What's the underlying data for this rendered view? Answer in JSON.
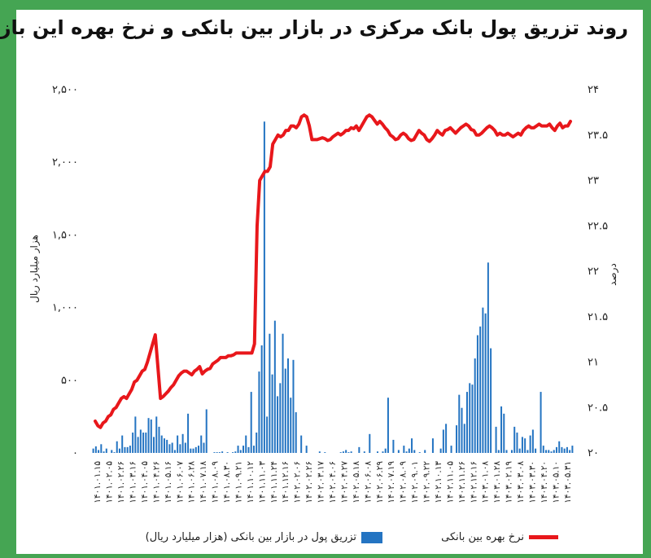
{
  "title": "روند تزریق پول بانک مرکزی در بازار بین بانکی و نرخ بهره این بازار",
  "legend": {
    "rate_label": "نرخ بهره بین بانکی",
    "injection_label": "تزریق پول در بازار بین بانکی (هزار میلیارد ریال)"
  },
  "colors": {
    "line": "#e8171b",
    "bar": "#2474c2",
    "frame": "#45a553"
  },
  "chart_data": {
    "type": "bar+line",
    "title": "روند تزریق پول بانک مرکزی در بازار بین بانکی و نرخ بهره این بازار",
    "ylabel_left": "هزار میلیارد ریال",
    "ylabel_right": "درصد",
    "y_left_lim": [
      0,
      2500
    ],
    "y_right_lim": [
      20,
      24
    ],
    "y_left_ticks": [
      "۰",
      "۵۰۰",
      "۱,۰۰۰",
      "۱,۵۰۰",
      "۲,۰۰۰",
      "۲,۵۰۰"
    ],
    "y_right_ticks": [
      "۲۰",
      "۲۰.۵",
      "۲۱",
      "۲۱.۵",
      "۲۲",
      "۲۲.۵",
      "۲۳",
      "۲۳.۵",
      "۲۴"
    ],
    "x_tick_labels": [
      "۱۴۰۱.۰۱.۱۵",
      "۱۴۰۱.۰۲.۰۵",
      "۱۴۰۱.۰۲.۲۶",
      "۱۴۰۱.۰۳.۱۶",
      "۱۴۰۱.۰۴.۰۵",
      "۱۴۰۱.۰۴.۲۶",
      "۱۴۰۱.۰۵.۱۶",
      "۱۴۰۱.۰۶.۰۷",
      "۱۴۰۱.۰۶.۲۸",
      "۱۴۰۱.۰۷.۱۸",
      "۱۴۰۱.۰۸.۰۹",
      "۱۴۰۱.۰۸.۳۰",
      "۱۴۰۱.۰۹.۲۱",
      "۱۴۰۱.۱۰.۱۲",
      "۱۴۰۱.۱۱.۰۳",
      "۱۴۰۱.۱۱.۲۴",
      "۱۴۰۱.۱۲.۱۶",
      "۱۴۰۲.۰۲.۰۶",
      "۱۴۰۲.۰۲.۲۶",
      "۱۴۰۲.۰۳.۱۷",
      "۱۴۰۲.۰۴.۰۶",
      "۱۴۰۲.۰۴.۲۷",
      "۱۴۰۲.۰۵.۱۸",
      "۱۴۰۲.۰۶.۰۸",
      "۱۴۰۲.۰۶.۲۹",
      "۱۴۰۲.۰۷.۱۹",
      "۱۴۰۲.۰۸.۰۹",
      "۱۴۰۲.۰۹.۰۱",
      "۱۴۰۲.۰۹.۲۲",
      "۱۴۰۲.۱۰.۱۳",
      "۱۴۰۲.۱۱.۰۵",
      "۱۴۰۲.۱۱.۲۶",
      "۱۴۰۲.۱۲.۱۶",
      "۱۴۰۳.۰۱.۰۸",
      "۱۴۰۳.۰۱.۲۸",
      "۱۴۰۳.۰۲.۱۹",
      "۱۴۰۳.۰۳.۰۸",
      "۱۴۰۳.۰۳.۳۰",
      "۱۴۰۳.۰۴.۲۰",
      "۱۴۰۳.۰۵.۱۰",
      "۱۴۰۳.۰۵.۳۱"
    ],
    "series": [
      {
        "name": "تزریق پول در بازار بین بانکی (هزار میلیارد ریال)",
        "kind": "bar",
        "axis": "left",
        "values": [
          30,
          45,
          20,
          60,
          10,
          30,
          0,
          20,
          5,
          80,
          30,
          120,
          40,
          40,
          50,
          140,
          250,
          110,
          160,
          140,
          140,
          240,
          230,
          110,
          250,
          180,
          120,
          100,
          90,
          60,
          70,
          20,
          120,
          60,
          130,
          70,
          270,
          30,
          30,
          40,
          50,
          120,
          70,
          300,
          0,
          0,
          5,
          5,
          5,
          10,
          0,
          5,
          0,
          5,
          10,
          50,
          20,
          50,
          120,
          40,
          420,
          50,
          140,
          560,
          740,
          2280,
          250,
          820,
          540,
          910,
          390,
          480,
          820,
          580,
          650,
          380,
          640,
          280,
          0,
          120,
          0,
          50,
          0,
          0,
          0,
          0,
          10,
          0,
          5,
          0,
          0,
          0,
          0,
          0,
          5,
          10,
          20,
          5,
          10,
          0,
          0,
          40,
          0,
          10,
          0,
          130,
          0,
          0,
          10,
          0,
          10,
          30,
          380,
          0,
          90,
          0,
          20,
          0,
          50,
          10,
          30,
          100,
          20,
          0,
          5,
          0,
          20,
          0,
          0,
          100,
          0,
          0,
          30,
          160,
          200,
          0,
          50,
          0,
          190,
          400,
          310,
          200,
          420,
          480,
          470,
          650,
          810,
          870,
          1000,
          960,
          1310,
          720,
          0,
          180,
          20,
          320,
          270,
          20,
          0,
          20,
          180,
          140,
          30,
          110,
          100,
          20,
          120,
          160,
          30,
          0,
          420,
          50,
          20,
          20,
          10,
          20,
          40,
          80,
          40,
          30,
          40,
          20,
          50
        ],
        "color": "#2474c2"
      },
      {
        "name": "نرخ بهره بین بانکی",
        "kind": "line",
        "axis": "right",
        "values": [
          20.35,
          20.3,
          20.28,
          20.33,
          20.35,
          20.4,
          20.42,
          20.48,
          20.5,
          20.55,
          20.6,
          20.62,
          20.6,
          20.65,
          20.7,
          20.78,
          20.8,
          20.85,
          20.9,
          20.92,
          21.0,
          21.1,
          21.2,
          21.3,
          20.95,
          20.6,
          20.62,
          20.65,
          20.68,
          20.72,
          20.75,
          20.8,
          20.85,
          20.88,
          20.9,
          20.9,
          20.88,
          20.86,
          20.9,
          20.92,
          20.95,
          20.87,
          20.9,
          20.92,
          20.93,
          20.98,
          21.0,
          21.02,
          21.05,
          21.05,
          21.05,
          21.07,
          21.07,
          21.08,
          21.1,
          21.1,
          21.1,
          21.1,
          21.1,
          21.1,
          21.1,
          21.2,
          22.5,
          23.0,
          23.05,
          23.1,
          23.1,
          23.15,
          23.4,
          23.45,
          23.5,
          23.48,
          23.5,
          23.55,
          23.55,
          23.6,
          23.6,
          23.58,
          23.62,
          23.7,
          23.72,
          23.7,
          23.6,
          23.45,
          23.45,
          23.45,
          23.46,
          23.47,
          23.46,
          23.44,
          23.45,
          23.48,
          23.5,
          23.52,
          23.5,
          23.52,
          23.55,
          23.55,
          23.58,
          23.57,
          23.6,
          23.55,
          23.6,
          23.65,
          23.7,
          23.72,
          23.7,
          23.66,
          23.62,
          23.65,
          23.62,
          23.58,
          23.55,
          23.5,
          23.48,
          23.45,
          23.46,
          23.5,
          23.52,
          23.5,
          23.46,
          23.44,
          23.45,
          23.5,
          23.55,
          23.52,
          23.5,
          23.45,
          23.43,
          23.46,
          23.5,
          23.55,
          23.52,
          23.5,
          23.55,
          23.56,
          23.58,
          23.55,
          23.52,
          23.55,
          23.58,
          23.6,
          23.62,
          23.6,
          23.56,
          23.55,
          23.5,
          23.5,
          23.52,
          23.55,
          23.58,
          23.6,
          23.58,
          23.55,
          23.5,
          23.52,
          23.5,
          23.5,
          23.52,
          23.5,
          23.48,
          23.5,
          23.52,
          23.5,
          23.55,
          23.58,
          23.6,
          23.58,
          23.58,
          23.6,
          23.62,
          23.6,
          23.6,
          23.6,
          23.62,
          23.58,
          23.55,
          23.6,
          23.63,
          23.58,
          23.6,
          23.6,
          23.65
        ],
        "color": "#e8171b"
      }
    ],
    "grid": false,
    "legend_position": "bottom"
  }
}
